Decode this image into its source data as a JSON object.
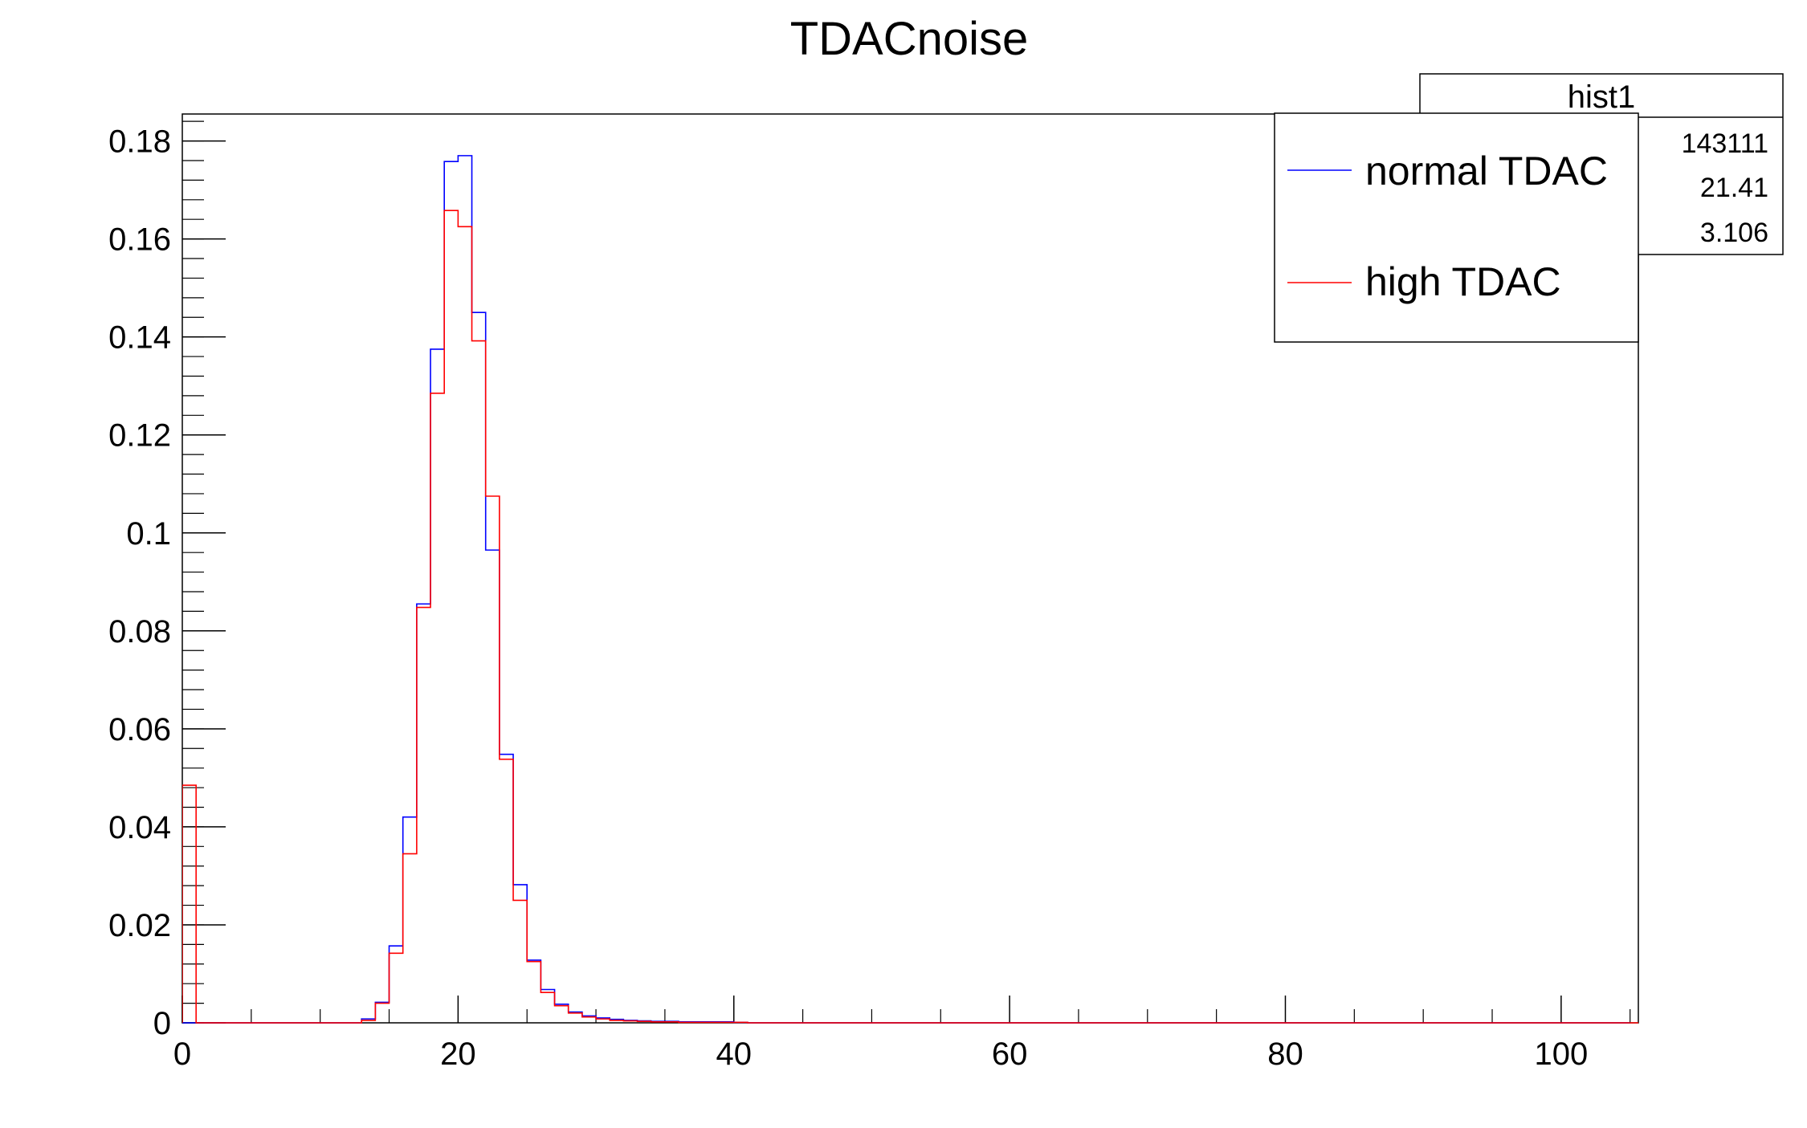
{
  "chart_data": {
    "type": "bar",
    "title": "TDACnoise",
    "xlabel": "",
    "ylabel": "",
    "xlim": [
      0,
      105.6
    ],
    "ylim": [
      0,
      0.1855
    ],
    "grid": false,
    "bin_width": 1,
    "x_ticks": [
      "0",
      "20",
      "40",
      "60",
      "80",
      "100"
    ],
    "y_ticks": [
      "0",
      "0.02",
      "0.04",
      "0.06",
      "0.08",
      "0.1",
      "0.12",
      "0.14",
      "0.16",
      "0.18"
    ],
    "stats_box": {
      "title": "hist1",
      "values": [
        "143111",
        "21.41",
        "3.106"
      ]
    },
    "legend": {
      "position": "top-right",
      "entries": [
        {
          "label": "normal TDAC",
          "color": "#0000ff"
        },
        {
          "label": "high TDAC",
          "color": "#ff0000"
        }
      ]
    },
    "series": [
      {
        "name": "normal TDAC",
        "color": "#0000ff",
        "bin_edges_start": 0,
        "values": [
          0.0,
          0,
          0,
          0,
          0,
          0,
          0,
          0,
          0,
          0,
          0,
          0,
          0,
          0.0008,
          0.0042,
          0.0157,
          0.042,
          0.0855,
          0.1375,
          0.1758,
          0.177,
          0.145,
          0.0965,
          0.0548,
          0.0282,
          0.0128,
          0.0068,
          0.0038,
          0.0022,
          0.0014,
          0.001,
          0.0007,
          0.0005,
          0.0004,
          0.0003,
          0.0003,
          0.0002,
          0.0002,
          0.0002,
          0.0002,
          0.0001,
          0,
          0,
          0,
          0,
          0,
          0,
          0,
          0,
          0,
          0,
          0,
          0,
          0,
          0,
          0,
          0,
          0,
          0,
          0,
          0,
          0,
          0,
          0,
          0,
          0,
          0,
          0,
          0,
          0,
          0,
          0,
          0,
          0,
          0,
          0,
          0,
          0,
          0,
          0,
          0,
          0,
          0,
          0,
          0,
          0,
          0,
          0,
          0,
          0,
          0,
          0,
          0,
          0,
          0,
          0,
          0,
          0,
          0,
          0,
          0,
          0,
          0,
          0,
          0
        ]
      },
      {
        "name": "high TDAC",
        "color": "#ff0000",
        "bin_edges_start": 0,
        "values": [
          0.0485,
          0,
          0,
          0,
          0,
          0,
          0,
          0,
          0,
          0,
          0,
          0,
          0,
          0.0005,
          0.004,
          0.0142,
          0.0345,
          0.0848,
          0.1285,
          0.1658,
          0.1625,
          0.1392,
          0.1075,
          0.0538,
          0.025,
          0.0125,
          0.0062,
          0.0035,
          0.002,
          0.0012,
          0.0008,
          0.0005,
          0.0004,
          0.0003,
          0.0002,
          0.0002,
          0.0001,
          0.0001,
          0.0001,
          0.0001,
          0.0001,
          0,
          0,
          0,
          0,
          0,
          0,
          0,
          0,
          0,
          0,
          0,
          0,
          0,
          0,
          0,
          0,
          0,
          0,
          0,
          0,
          0,
          0,
          0,
          0,
          0,
          0,
          0,
          0,
          0,
          0,
          0,
          0,
          0,
          0,
          0,
          0,
          0,
          0,
          0,
          0,
          0,
          0,
          0,
          0,
          0,
          0,
          0,
          0,
          0,
          0,
          0,
          0,
          0,
          0,
          0,
          0,
          0,
          0,
          0,
          0,
          0,
          0,
          0,
          0,
          0
        ]
      }
    ]
  }
}
